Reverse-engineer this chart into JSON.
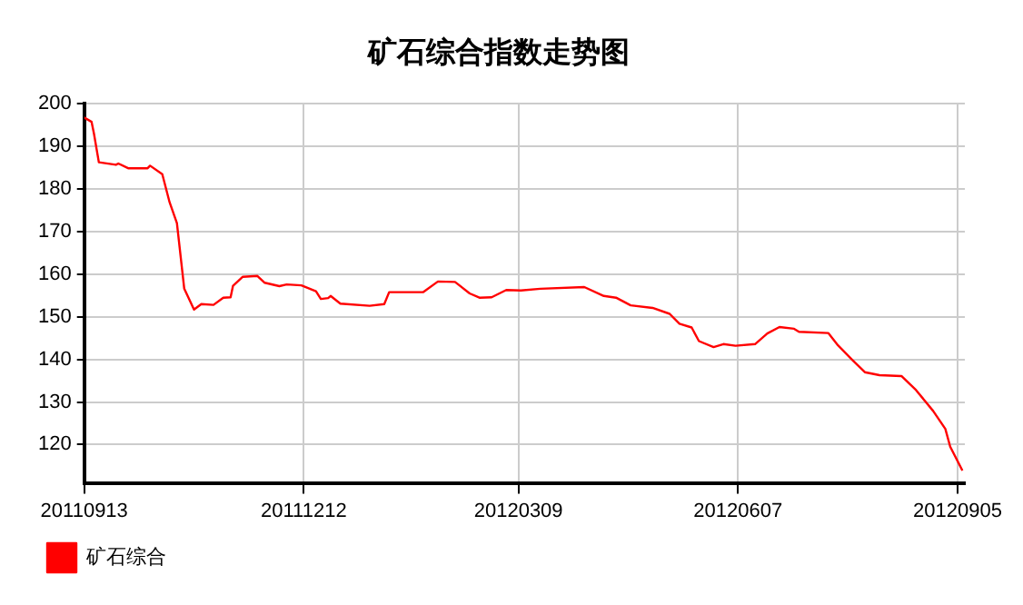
{
  "chart_data": {
    "type": "line",
    "title": "矿石综合指数走势图",
    "x": [
      "2011-09-13",
      "2011-09-16",
      "2011-09-17",
      "2011-09-19",
      "2011-09-26",
      "2011-09-27",
      "2011-10-01",
      "2011-10-09",
      "2011-10-10",
      "2011-10-15",
      "2011-10-18",
      "2011-10-21",
      "2011-10-24",
      "2011-10-28",
      "2011-10-31",
      "2011-11-05",
      "2011-11-09",
      "2011-11-12",
      "2011-11-13",
      "2011-11-17",
      "2011-11-23",
      "2011-11-26",
      "2011-12-02",
      "2011-12-05",
      "2011-12-11",
      "2011-12-17",
      "2011-12-19",
      "2011-12-22",
      "2011-12-23",
      "2011-12-27",
      "2012-01-08",
      "2012-01-14",
      "2012-01-16",
      "2012-01-30",
      "2012-02-05",
      "2012-02-12",
      "2012-02-18",
      "2012-02-22",
      "2012-02-27",
      "2012-03-04",
      "2012-03-10",
      "2012-03-18",
      "2012-04-05",
      "2012-04-13",
      "2012-04-18",
      "2012-04-24",
      "2012-05-03",
      "2012-05-10",
      "2012-05-14",
      "2012-05-19",
      "2012-05-22",
      "2012-05-28",
      "2012-06-01",
      "2012-06-06",
      "2012-06-14",
      "2012-06-19",
      "2012-06-24",
      "2012-06-30",
      "2012-07-02",
      "2012-07-14",
      "2012-07-18",
      "2012-07-24",
      "2012-07-29",
      "2012-08-04",
      "2012-08-13",
      "2012-08-19",
      "2012-08-26",
      "2012-08-31",
      "2012-09-02",
      "2012-09-07"
    ],
    "series": [
      {
        "name": "矿石综合",
        "color": "#ff0000",
        "values": [
          196.8,
          195.8,
          193,
          186.3,
          185.7,
          186,
          184.9,
          184.9,
          185.5,
          183.5,
          176.9,
          172,
          156.6,
          151.7,
          153,
          152.8,
          154.5,
          154.6,
          157.3,
          159.4,
          159.6,
          158,
          157.2,
          157.6,
          157.4,
          156,
          154.2,
          154.4,
          154.9,
          153.1,
          152.6,
          153,
          155.8,
          155.8,
          158.3,
          158.2,
          155.5,
          154.5,
          154.6,
          156.3,
          156.2,
          156.6,
          157,
          154.9,
          154.5,
          152.7,
          152.1,
          150.7,
          148.4,
          147.5,
          144.3,
          142.9,
          143.6,
          143.2,
          143.6,
          146.1,
          147.6,
          147.2,
          146.5,
          146.2,
          143.3,
          139.8,
          137,
          136.3,
          136.1,
          132.8,
          127.9,
          123.7,
          119.5,
          113.9
        ]
      }
    ],
    "xlim": [
      "2011-09-13",
      "2012-09-08"
    ],
    "xticks": [
      {
        "value": "2011-09-13",
        "label": "20110913"
      },
      {
        "value": "2011-12-12",
        "label": "20111212"
      },
      {
        "value": "2012-03-09",
        "label": "20120309"
      },
      {
        "value": "2012-06-07",
        "label": "20120607"
      },
      {
        "value": "2012-09-05",
        "label": "20120905"
      }
    ],
    "ylim": [
      111,
      200
    ],
    "yticks": [
      120,
      130,
      140,
      150,
      160,
      170,
      180,
      190,
      200
    ],
    "grid": true,
    "legend": "bottom left",
    "marker": "none",
    "line_style": "solid"
  }
}
